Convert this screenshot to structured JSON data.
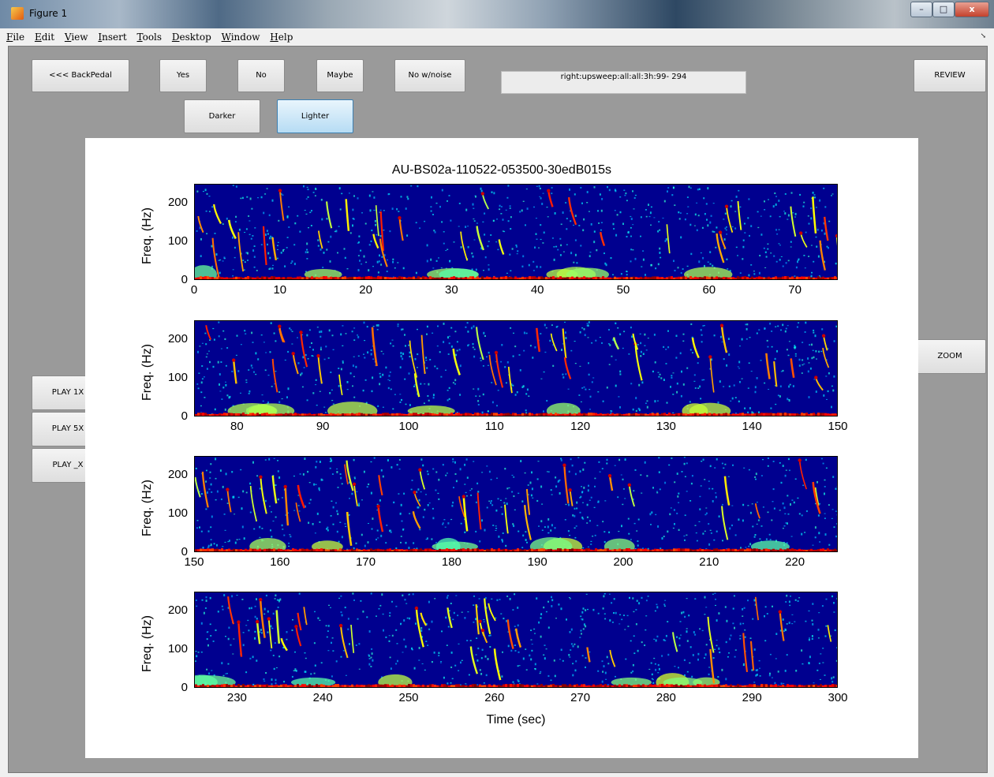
{
  "window": {
    "title": "Figure 1"
  },
  "menu": [
    "File",
    "Edit",
    "View",
    "Insert",
    "Tools",
    "Desktop",
    "Window",
    "Help"
  ],
  "controls": {
    "backpedal": "<<< BackPedal",
    "yes": "Yes",
    "no": "No",
    "maybe": "Maybe",
    "no_noise": "No w/noise",
    "darker": "Darker",
    "lighter": "Lighter",
    "review": "REVIEW",
    "zoom": "ZOOM",
    "play1": "PLAY 1X",
    "play5": "PLAY 5X",
    "playx": "PLAY _X",
    "status_text": "right:upsweep:all:all:3h:99- 294"
  },
  "chart_data": {
    "type": "heatmap",
    "title": "AU-BS02a-110522-053500-30edB015s",
    "xlabel": "Time (sec)",
    "ylabel": "Freq. (Hz)",
    "colormap": "jet",
    "colors": {
      "background": "#00008f",
      "hot": "#cc0000"
    },
    "panels": [
      {
        "xlim": [
          0,
          75
        ],
        "ylim": [
          0,
          250
        ],
        "xticks": [
          0,
          10,
          20,
          30,
          40,
          50,
          60,
          70
        ],
        "yticks": [
          0,
          100,
          200
        ]
      },
      {
        "xlim": [
          75,
          150
        ],
        "ylim": [
          0,
          250
        ],
        "xticks": [
          80,
          90,
          100,
          110,
          120,
          130,
          140,
          150
        ],
        "yticks": [
          0,
          100,
          200
        ]
      },
      {
        "xlim": [
          150,
          225
        ],
        "ylim": [
          0,
          250
        ],
        "xticks": [
          150,
          160,
          170,
          180,
          190,
          200,
          210,
          220
        ],
        "yticks": [
          0,
          100,
          200
        ]
      },
      {
        "xlim": [
          225,
          300
        ],
        "ylim": [
          0,
          250
        ],
        "xticks": [
          230,
          240,
          250,
          260,
          270,
          280,
          290,
          300
        ],
        "yticks": [
          0,
          100,
          200
        ]
      }
    ]
  }
}
